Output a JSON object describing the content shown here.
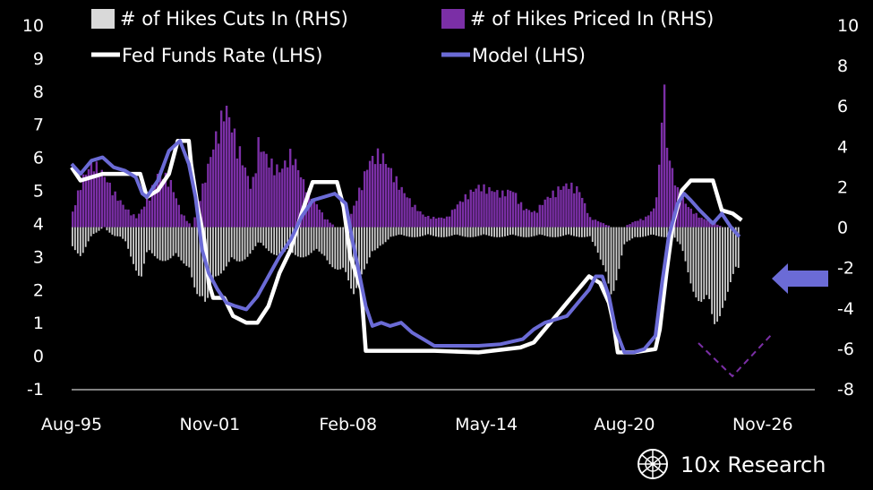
{
  "chart_data": {
    "type": "bar+line",
    "title": "",
    "legend_placement": "top",
    "legend": [
      {
        "key": "cuts",
        "label": "# of Hikes Cuts In (RHS)",
        "color": "#d9d9d9",
        "shape": "square"
      },
      {
        "key": "priced",
        "label": "# of Hikes Priced In (RHS)",
        "color": "#7b2fa6",
        "shape": "square"
      },
      {
        "key": "ffr",
        "label": "Fed Funds Rate (LHS)",
        "color": "#ffffff",
        "shape": "line"
      },
      {
        "key": "model",
        "label": "Model (LHS)",
        "color": "#6b6bd6",
        "shape": "line"
      }
    ],
    "x_ticks": [
      "Aug-95",
      "Nov-01",
      "Feb-08",
      "May-14",
      "Aug-20",
      "Nov-26"
    ],
    "x_range": [
      1995.6,
      2026.9
    ],
    "y_left": {
      "range": [
        -1,
        10
      ],
      "ticks": [
        "10",
        "9",
        "8",
        "7",
        "6",
        "5",
        "4",
        "3",
        "2",
        "1",
        "0",
        "-1"
      ]
    },
    "y_right": {
      "range": [
        -8,
        10
      ],
      "ticks": [
        "10",
        "8",
        "6",
        "4",
        "2",
        "0",
        "-2",
        "-4",
        "-6",
        "-8"
      ]
    },
    "colors": {
      "cuts": "#cfcfcf",
      "priced": "#7b2fa6",
      "ffr": "#ffffff",
      "model": "#6b6bd6",
      "arrow": "#6b6bd6",
      "dashed": "#7b2fa6"
    },
    "series": [
      {
        "name": "Fed Funds Rate (LHS)",
        "axis": "left",
        "x": [
          1995.6,
          1996.0,
          1997.0,
          1998.0,
          1998.7,
          1999.0,
          1999.5,
          2000.0,
          2000.4,
          2000.9,
          2001.0,
          2001.3,
          2001.6,
          2001.8,
          2002.0,
          2002.5,
          2002.9,
          2003.5,
          2004.0,
          2004.5,
          2005.0,
          2005.5,
          2006.0,
          2006.5,
          2007.0,
          2007.6,
          2007.9,
          2008.2,
          2008.7,
          2008.9,
          2009.5,
          2010,
          2012,
          2014,
          2015.9,
          2016.5,
          2017,
          2017.5,
          2018,
          2018.5,
          2019,
          2019.5,
          2019.9,
          2020.1,
          2020.3,
          2021,
          2022.0,
          2022.2,
          2022.5,
          2022.8,
          2023.2,
          2023.6,
          2024.0,
          2024.6,
          2025.0,
          2025.5,
          2025.9
        ],
        "y": [
          5.7,
          5.3,
          5.5,
          5.5,
          5.5,
          4.8,
          5.0,
          5.5,
          6.5,
          6.5,
          5.8,
          4.5,
          3.5,
          2.2,
          1.75,
          1.75,
          1.2,
          1.0,
          1.0,
          1.5,
          2.5,
          3.2,
          4.3,
          5.25,
          5.25,
          5.25,
          4.5,
          3.0,
          2.0,
          0.15,
          0.15,
          0.15,
          0.15,
          0.1,
          0.25,
          0.4,
          0.8,
          1.2,
          1.6,
          2.0,
          2.4,
          2.2,
          1.6,
          1.0,
          0.1,
          0.1,
          0.2,
          0.8,
          2.5,
          4.0,
          5.0,
          5.3,
          5.3,
          5.3,
          4.4,
          4.3,
          4.1
        ]
      },
      {
        "name": "Model (LHS)",
        "axis": "left",
        "x": [
          1995.6,
          1996.0,
          1996.5,
          1997.0,
          1997.5,
          1998.0,
          1998.5,
          1998.8,
          1999.0,
          1999.5,
          2000.0,
          2000.5,
          2000.9,
          2001.2,
          2001.5,
          2001.8,
          2002.2,
          2002.6,
          2003.0,
          2003.5,
          2004.0,
          2004.5,
          2005.0,
          2005.5,
          2006.0,
          2006.5,
          2007.0,
          2007.5,
          2008.0,
          2008.3,
          2008.6,
          2008.9,
          2009.2,
          2009.6,
          2010.0,
          2010.5,
          2011.0,
          2011.5,
          2012.0,
          2012.5,
          2013.0,
          2014.0,
          2015.0,
          2016.0,
          2016.5,
          2017.0,
          2017.5,
          2018.0,
          2018.5,
          2019.0,
          2019.3,
          2019.6,
          2019.9,
          2020.2,
          2020.6,
          2021.0,
          2021.5,
          2022.0,
          2022.3,
          2022.6,
          2023.0,
          2023.3,
          2023.6,
          2024.0,
          2024.3,
          2024.6,
          2025.0,
          2025.4,
          2025.8
        ],
        "y": [
          5.8,
          5.5,
          5.9,
          6.0,
          5.7,
          5.6,
          5.4,
          4.9,
          4.8,
          5.3,
          6.2,
          6.5,
          5.8,
          4.8,
          3.2,
          2.5,
          2.0,
          1.6,
          1.5,
          1.4,
          1.8,
          2.4,
          3.0,
          3.5,
          4.2,
          4.7,
          4.8,
          4.9,
          4.6,
          3.5,
          2.5,
          1.5,
          0.9,
          1.0,
          0.9,
          1.0,
          0.7,
          0.5,
          0.3,
          0.3,
          0.3,
          0.3,
          0.35,
          0.5,
          0.8,
          1.0,
          1.1,
          1.2,
          1.6,
          2.0,
          2.4,
          2.4,
          1.8,
          0.8,
          0.1,
          0.1,
          0.2,
          0.6,
          2.2,
          3.6,
          4.6,
          4.9,
          4.7,
          4.4,
          4.2,
          4.0,
          4.3,
          3.9,
          3.6
        ]
      },
      {
        "name": "# of Hikes Priced In (RHS)",
        "axis": "right",
        "x": [
          1995.6,
          1996.0,
          1996.5,
          1997.0,
          1997.5,
          1998.0,
          1998.5,
          1999.0,
          1999.5,
          2000.0,
          2000.5,
          2001.0,
          2002.0,
          2002.5,
          2002.9,
          2003.3,
          2003.7,
          2004.0,
          2004.5,
          2005.0,
          2005.5,
          2006.0,
          2006.5,
          2007.0,
          2007.5,
          2008.0,
          2009.0,
          2009.5,
          2010.0,
          2010.5,
          2011.0,
          2011.5,
          2012.0,
          2012.5,
          2013.0,
          2013.5,
          2014.0,
          2014.5,
          2015.0,
          2015.5,
          2016.0,
          2016.5,
          2017.0,
          2017.5,
          2018.0,
          2018.5,
          2019.0,
          2020.0,
          2020.5,
          2021.0,
          2021.5,
          2021.9,
          2022.1,
          2022.3,
          2022.5,
          2023.0,
          2023.5,
          2024.0,
          2024.5,
          2025.0,
          2025.5
        ],
        "y": [
          0.8,
          2.5,
          3.5,
          2.8,
          1.8,
          1.0,
          0.5,
          1.5,
          3.0,
          2.5,
          0.8,
          0.0,
          4.5,
          6.5,
          5.0,
          3.5,
          2.0,
          4.5,
          3.5,
          3.0,
          4.0,
          2.5,
          1.5,
          0.5,
          0.0,
          0.0,
          3.5,
          4.0,
          3.0,
          2.0,
          1.2,
          0.6,
          0.5,
          0.5,
          1.2,
          1.8,
          2.2,
          2.0,
          1.8,
          2.0,
          1.0,
          0.8,
          1.5,
          2.0,
          2.3,
          2.0,
          0.5,
          0.0,
          0.0,
          0.3,
          0.5,
          1.0,
          2.5,
          8.5,
          4.0,
          1.8,
          1.0,
          0.5,
          0.3,
          0.0,
          0.0
        ]
      },
      {
        "name": "# of Hikes Cuts In (RHS)",
        "axis": "right",
        "x": [
          1995.6,
          1996.0,
          1996.5,
          1997.0,
          1997.5,
          1998.0,
          1998.7,
          1999.0,
          2000.9,
          2001.2,
          2001.6,
          2002.0,
          2003.0,
          2004.0,
          2005.0,
          2007.0,
          2007.5,
          2008.0,
          2008.3,
          2008.6,
          2009.0,
          2009.5,
          2010.0,
          2019.0,
          2019.4,
          2019.7,
          2020.0,
          2020.3,
          2020.6,
          2021.0,
          2022.8,
          2023.2,
          2023.6,
          2024.0,
          2024.3,
          2024.6,
          2025.0,
          2025.4,
          2025.8
        ],
        "y": [
          -1.0,
          -1.5,
          -0.5,
          0.0,
          -0.5,
          -0.8,
          -2.8,
          -1.5,
          -2.0,
          -3.5,
          -5.0,
          -2.5,
          -2.0,
          -1.0,
          -1.5,
          -1.5,
          -2.2,
          -3.0,
          -3.5,
          -2.5,
          -2.0,
          -1.0,
          -0.5,
          -0.5,
          -1.8,
          -2.2,
          -3.5,
          -2.5,
          -1.0,
          -0.5,
          -0.5,
          -1.5,
          -3.0,
          -4.0,
          -4.5,
          -5.5,
          -4.0,
          -3.0,
          -2.5
        ]
      }
    ]
  },
  "brand": {
    "name": "10x Research",
    "logo_icon": "globe-logo-icon"
  }
}
